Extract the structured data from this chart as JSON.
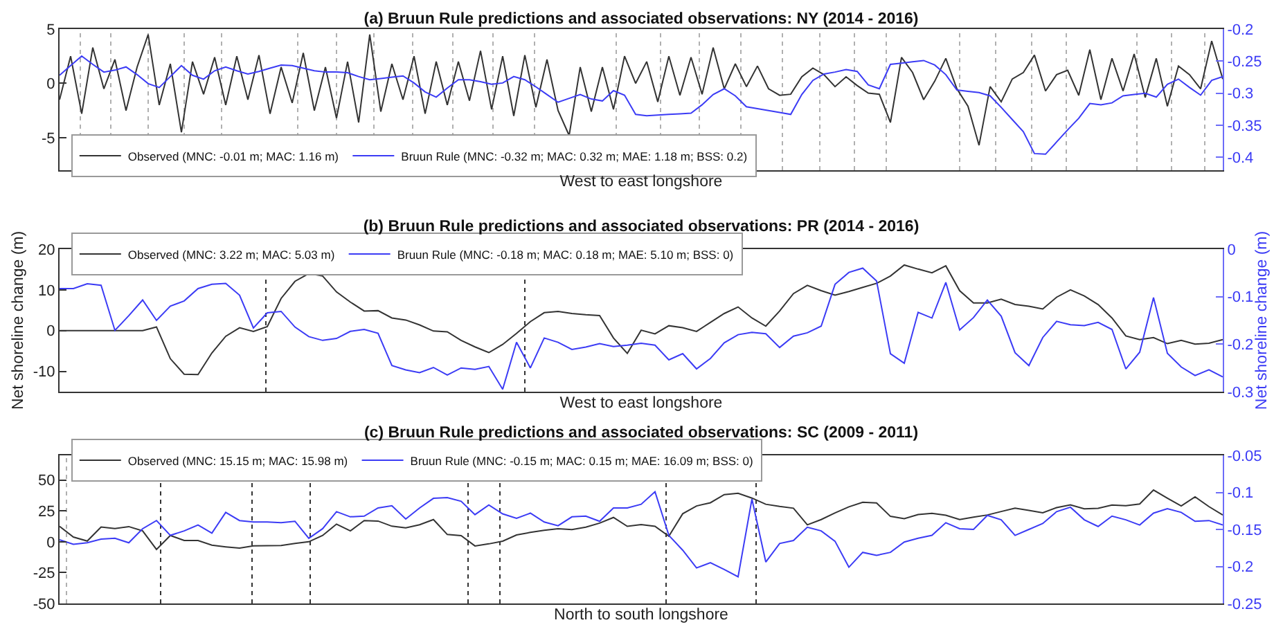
{
  "chart_data": [
    {
      "type": "line",
      "title": "(a) Bruun Rule predictions and associated observations: NY (2014 - 2016)",
      "xlabel": "West to east longshore",
      "categories": [
        null,
        null,
        null,
        null,
        null,
        null,
        null,
        null,
        null,
        null,
        null,
        null,
        null,
        null,
        null,
        null,
        null,
        null,
        null,
        null,
        null,
        null,
        null,
        null,
        null,
        null,
        null,
        null,
        null,
        null,
        null,
        null,
        null,
        null,
        null,
        null,
        null,
        null,
        null,
        null,
        null,
        null,
        null,
        null,
        null,
        null,
        null,
        null,
        null,
        null,
        null,
        null,
        null,
        null,
        null,
        null,
        null,
        null,
        null,
        null,
        null,
        null,
        null,
        null,
        null,
        null,
        null,
        null,
        null,
        null,
        null,
        null,
        null,
        null,
        null,
        null,
        null,
        null,
        null,
        null,
        null,
        null,
        null,
        null,
        null,
        null,
        null,
        null,
        null,
        null,
        null,
        null,
        null,
        null,
        null,
        null,
        null,
        null,
        null,
        null,
        null,
        null,
        null,
        null,
        null,
        null
      ],
      "ylim": [
        -8,
        5
      ],
      "yticks": [
        -5,
        0,
        5
      ],
      "y2lim": [
        -0.42,
        -0.2
      ],
      "y2ticks": [
        -0.4,
        -0.35,
        -0.3,
        -0.25,
        -0.2
      ],
      "tick_labels": "y",
      "legend": "bottom left",
      "grid": false,
      "series": [
        {
          "name": "Observed (MNC: -0.01 m; MAC: 1.16 m)",
          "color": "#333333",
          "values": [
            -1.5,
            2.5,
            -2.8,
            3.3,
            -0.5,
            2.2,
            -2.5,
            1.5,
            4.5,
            -2,
            1.8,
            -4.5,
            2,
            -1,
            2.4,
            -2,
            2.5,
            -1.5,
            2.6,
            -2.8,
            1.5,
            -1.8,
            2.8,
            -2.5,
            1.5,
            -3.2,
            2,
            -3.6,
            4.5,
            -2.6,
            1.8,
            -1.5,
            2.5,
            -2.8,
            2,
            -2,
            2,
            -1.6,
            3,
            -2.4,
            2.5,
            -3,
            2.6,
            -2.2,
            2.2,
            -2.5,
            -4.8,
            1.5,
            -2.6,
            1.5,
            -2.4,
            2.5,
            0,
            2,
            -1.7,
            2.5,
            -1.1,
            2.4,
            -1,
            3.3,
            -0.5,
            1.8,
            -0.3,
            1.6,
            -0.5,
            -1.1,
            -1,
            0.6,
            1.4,
            0.8,
            -0.3,
            0.6,
            -0.2,
            -0.9,
            -1,
            -3.6,
            2.4,
            1,
            -1.5,
            0.2,
            2.3,
            -0.5,
            -2.1,
            -5.7,
            -0.3,
            -1.7,
            0.4,
            1,
            2.6,
            -0.7,
            0.8,
            1.2,
            -1.1,
            3.1,
            -1.5,
            2.3,
            -0.7,
            2.7,
            -1.3,
            2.3,
            -2.1,
            1.6,
            0.8,
            -0.5,
            3.9,
            0.4
          ]
        },
        {
          "name": "Bruun Rule (MNC: -0.32 m; MAC: 0.32 m; MAE: 1.18 m; BSS: 0.2)",
          "color": "#3b3bf5",
          "axis": "y2",
          "values": [
            -0.272,
            -0.257,
            -0.242,
            -0.255,
            -0.267,
            -0.264,
            -0.259,
            -0.271,
            -0.285,
            -0.291,
            -0.274,
            -0.257,
            -0.272,
            -0.278,
            -0.265,
            -0.259,
            -0.265,
            -0.27,
            -0.266,
            -0.261,
            -0.256,
            -0.257,
            -0.261,
            -0.265,
            -0.267,
            -0.267,
            -0.268,
            -0.274,
            -0.279,
            -0.277,
            -0.275,
            -0.273,
            -0.284,
            -0.298,
            -0.306,
            -0.292,
            -0.279,
            -0.279,
            -0.282,
            -0.286,
            -0.284,
            -0.274,
            -0.279,
            -0.29,
            -0.302,
            -0.314,
            -0.308,
            -0.302,
            -0.309,
            -0.312,
            -0.296,
            -0.303,
            -0.333,
            -0.335,
            -0.334,
            -0.333,
            -0.332,
            -0.331,
            -0.318,
            -0.302,
            -0.293,
            -0.304,
            -0.321,
            -0.324,
            -0.327,
            -0.33,
            -0.333,
            -0.302,
            -0.28,
            -0.27,
            -0.267,
            -0.263,
            -0.266,
            -0.287,
            -0.293,
            -0.255,
            -0.253,
            -0.251,
            -0.249,
            -0.256,
            -0.271,
            -0.295,
            -0.297,
            -0.299,
            -0.304,
            -0.322,
            -0.341,
            -0.36,
            -0.394,
            -0.395,
            -0.376,
            -0.357,
            -0.339,
            -0.316,
            -0.318,
            -0.315,
            -0.304,
            -0.302,
            -0.3,
            -0.306,
            -0.286,
            -0.278,
            -0.291,
            -0.303,
            -0.28,
            -0.274
          ]
        }
      ]
    },
    {
      "type": "line",
      "title": "(b) Bruun Rule predictions and associated observations: PR (2014 - 2016)",
      "xlabel": "West to east longshore",
      "ylabel": "Net shoreline change (m)",
      "y2label": "Net shoreline change (m)",
      "categories": [
        null,
        null,
        null,
        null,
        null,
        null,
        null,
        null,
        null,
        null,
        null,
        null,
        null,
        null,
        null,
        null,
        null,
        null,
        null,
        null,
        null,
        null,
        null,
        null,
        null,
        null,
        null,
        null,
        null,
        null,
        null,
        null,
        null,
        null,
        null,
        null,
        null,
        null,
        null,
        null,
        null,
        null,
        null,
        null,
        null,
        null,
        null,
        null,
        null,
        null,
        null,
        null,
        null,
        null,
        null,
        null,
        null,
        null,
        null,
        null,
        null,
        null,
        null,
        null,
        null,
        null,
        null,
        null,
        null,
        null,
        null,
        null,
        null,
        null,
        null,
        null,
        null,
        null,
        null,
        null,
        null,
        null,
        null,
        null,
        null
      ],
      "ylim": [
        -15,
        20
      ],
      "yticks": [
        -10,
        0,
        10,
        20
      ],
      "y2lim": [
        -0.3,
        0
      ],
      "y2ticks": [
        -0.3,
        -0.2,
        -0.1,
        0
      ],
      "tick_labels": "y",
      "legend": "top left",
      "grid": false,
      "series": [
        {
          "name": "Observed (MNC: 3.22 m; MAC: 5.03 m)",
          "color": "#333333",
          "values": [
            0,
            0,
            0,
            0,
            0,
            0,
            0,
            0.9,
            -6.9,
            -10.7,
            -10.8,
            -5.5,
            -1.4,
            0.7,
            -0.2,
            1,
            7.9,
            12.1,
            14,
            13.4,
            9.5,
            7,
            4.8,
            4.9,
            3.1,
            2.6,
            1.4,
            -0.1,
            -0.3,
            -2.4,
            -4,
            -5.4,
            -3.4,
            -0.7,
            2.2,
            4.4,
            4.7,
            4.2,
            3.9,
            3.7,
            -1.8,
            -5.6,
            0.1,
            -0.8,
            1.2,
            0.7,
            -0.2,
            2,
            4.2,
            5.8,
            3.1,
            1.1,
            4.8,
            9.1,
            11.1,
            9.8,
            8.7,
            9.6,
            10.6,
            11.6,
            13.4,
            16.1,
            15.1,
            14.2,
            15.9,
            9.8,
            6.8,
            6.8,
            7.7,
            6.4,
            6,
            5.3,
            8.2,
            10,
            8.5,
            6.4,
            3.1,
            -1.3,
            -2.2,
            -1.7,
            -3.2,
            -2.4,
            -3.3,
            -3.1,
            -2.2
          ]
        },
        {
          "name": "Bruun Rule (MNC: -0.18 m; MAC: 0.18 m; MAE: 5.10 m; BSS: 0)",
          "color": "#3b3bf5",
          "axis": "y2",
          "values": [
            -0.083,
            -0.083,
            -0.073,
            -0.076,
            -0.171,
            -0.14,
            -0.107,
            -0.15,
            -0.12,
            -0.109,
            -0.083,
            -0.074,
            -0.072,
            -0.097,
            -0.166,
            -0.134,
            -0.131,
            -0.164,
            -0.184,
            -0.192,
            -0.188,
            -0.173,
            -0.169,
            -0.177,
            -0.245,
            -0.254,
            -0.26,
            -0.249,
            -0.265,
            -0.25,
            -0.253,
            -0.247,
            -0.295,
            -0.196,
            -0.25,
            -0.187,
            -0.196,
            -0.211,
            -0.206,
            -0.199,
            -0.205,
            -0.202,
            -0.198,
            -0.202,
            -0.233,
            -0.22,
            -0.252,
            -0.23,
            -0.197,
            -0.18,
            -0.175,
            -0.178,
            -0.207,
            -0.183,
            -0.176,
            -0.162,
            -0.074,
            -0.049,
            -0.04,
            -0.067,
            -0.22,
            -0.24,
            -0.133,
            -0.145,
            -0.07,
            -0.17,
            -0.144,
            -0.107,
            -0.141,
            -0.218,
            -0.245,
            -0.186,
            -0.152,
            -0.159,
            -0.161,
            -0.154,
            -0.169,
            -0.252,
            -0.217,
            -0.102,
            -0.219,
            -0.248,
            -0.266,
            -0.254,
            -0.269
          ]
        }
      ]
    },
    {
      "type": "line",
      "title": "(c) Bruun Rule predictions and associated observations: SC (2009 - 2011)",
      "xlabel": "North to south longshore",
      "categories": [
        null,
        null,
        null,
        null,
        null,
        null,
        null,
        null,
        null,
        null,
        null,
        null,
        null,
        null,
        null,
        null,
        null,
        null,
        null,
        null,
        null,
        null,
        null,
        null,
        null,
        null,
        null,
        null,
        null,
        null,
        null,
        null,
        null,
        null,
        null,
        null,
        null,
        null,
        null,
        null,
        null,
        null,
        null,
        null,
        null,
        null,
        null,
        null,
        null,
        null,
        null,
        null,
        null,
        null,
        null,
        null,
        null,
        null,
        null,
        null,
        null,
        null,
        null,
        null,
        null,
        null,
        null,
        null,
        null,
        null,
        null,
        null,
        null,
        null,
        null,
        null,
        null,
        null,
        null,
        null,
        null,
        null,
        null,
        null,
        null
      ],
      "ylim": [
        -50,
        70
      ],
      "yticks": [
        -50,
        -25,
        0,
        25,
        50
      ],
      "y2lim": [
        -0.25,
        -0.05
      ],
      "y2ticks": [
        -0.25,
        -0.2,
        -0.15,
        -0.1,
        -0.05
      ],
      "tick_labels": "y",
      "legend": "top left",
      "grid": false,
      "series": [
        {
          "name": "Observed (MNC: 15.15 m; MAC: 15.98 m)",
          "color": "#333333",
          "values": [
            12.5,
            3.8,
            0.6,
            12,
            10.7,
            12.3,
            8.8,
            -6.2,
            5.1,
            1,
            1,
            -2.8,
            -4.1,
            -5.2,
            -3.3,
            -3.2,
            -3,
            -1.4,
            0,
            5.1,
            14.3,
            8.8,
            17.2,
            16.8,
            12.6,
            11.3,
            13.8,
            18,
            5.9,
            5,
            -3.4,
            -1.7,
            0.5,
            5.5,
            7.6,
            9.3,
            10.5,
            9.9,
            11.8,
            15.1,
            19.7,
            12.5,
            13.9,
            12.5,
            4.5,
            22.7,
            29,
            31.6,
            38.2,
            39.3,
            35.4,
            30.4,
            28.6,
            27.2,
            13.7,
            18,
            23.4,
            28.3,
            32,
            31.4,
            20.6,
            18.7,
            22,
            23.1,
            21.5,
            18,
            19.9,
            21.7,
            24.5,
            27.2,
            25.4,
            23.5,
            27.7,
            29.9,
            26.7,
            27.1,
            29.8,
            29.2,
            30.6,
            41.9,
            35.3,
            29,
            36.4,
            28.5,
            21.7
          ]
        },
        {
          "name": "Bruun Rule (MNC: -0.15 m; MAC: 0.15 m; MAE: 16.09 m; BSS: 0)",
          "color": "#3b3bf5",
          "axis": "y2",
          "values": [
            -0.164,
            -0.17,
            -0.168,
            -0.163,
            -0.162,
            -0.168,
            -0.149,
            -0.138,
            -0.158,
            -0.152,
            -0.144,
            -0.155,
            -0.127,
            -0.138,
            -0.14,
            -0.14,
            -0.141,
            -0.139,
            -0.162,
            -0.149,
            -0.126,
            -0.133,
            -0.132,
            -0.121,
            -0.118,
            -0.136,
            -0.121,
            -0.108,
            -0.107,
            -0.112,
            -0.13,
            -0.117,
            -0.129,
            -0.135,
            -0.128,
            -0.14,
            -0.145,
            -0.133,
            -0.132,
            -0.139,
            -0.121,
            -0.121,
            -0.116,
            -0.099,
            -0.158,
            -0.178,
            -0.202,
            -0.195,
            -0.204,
            -0.214,
            -0.109,
            -0.194,
            -0.169,
            -0.165,
            -0.147,
            -0.152,
            -0.166,
            -0.201,
            -0.181,
            -0.185,
            -0.181,
            -0.167,
            -0.162,
            -0.158,
            -0.141,
            -0.149,
            -0.15,
            -0.131,
            -0.137,
            -0.158,
            -0.15,
            -0.142,
            -0.126,
            -0.12,
            -0.137,
            -0.146,
            -0.132,
            -0.137,
            -0.144,
            -0.128,
            -0.122,
            -0.127,
            -0.139,
            -0.138,
            -0.144
          ]
        }
      ]
    }
  ]
}
